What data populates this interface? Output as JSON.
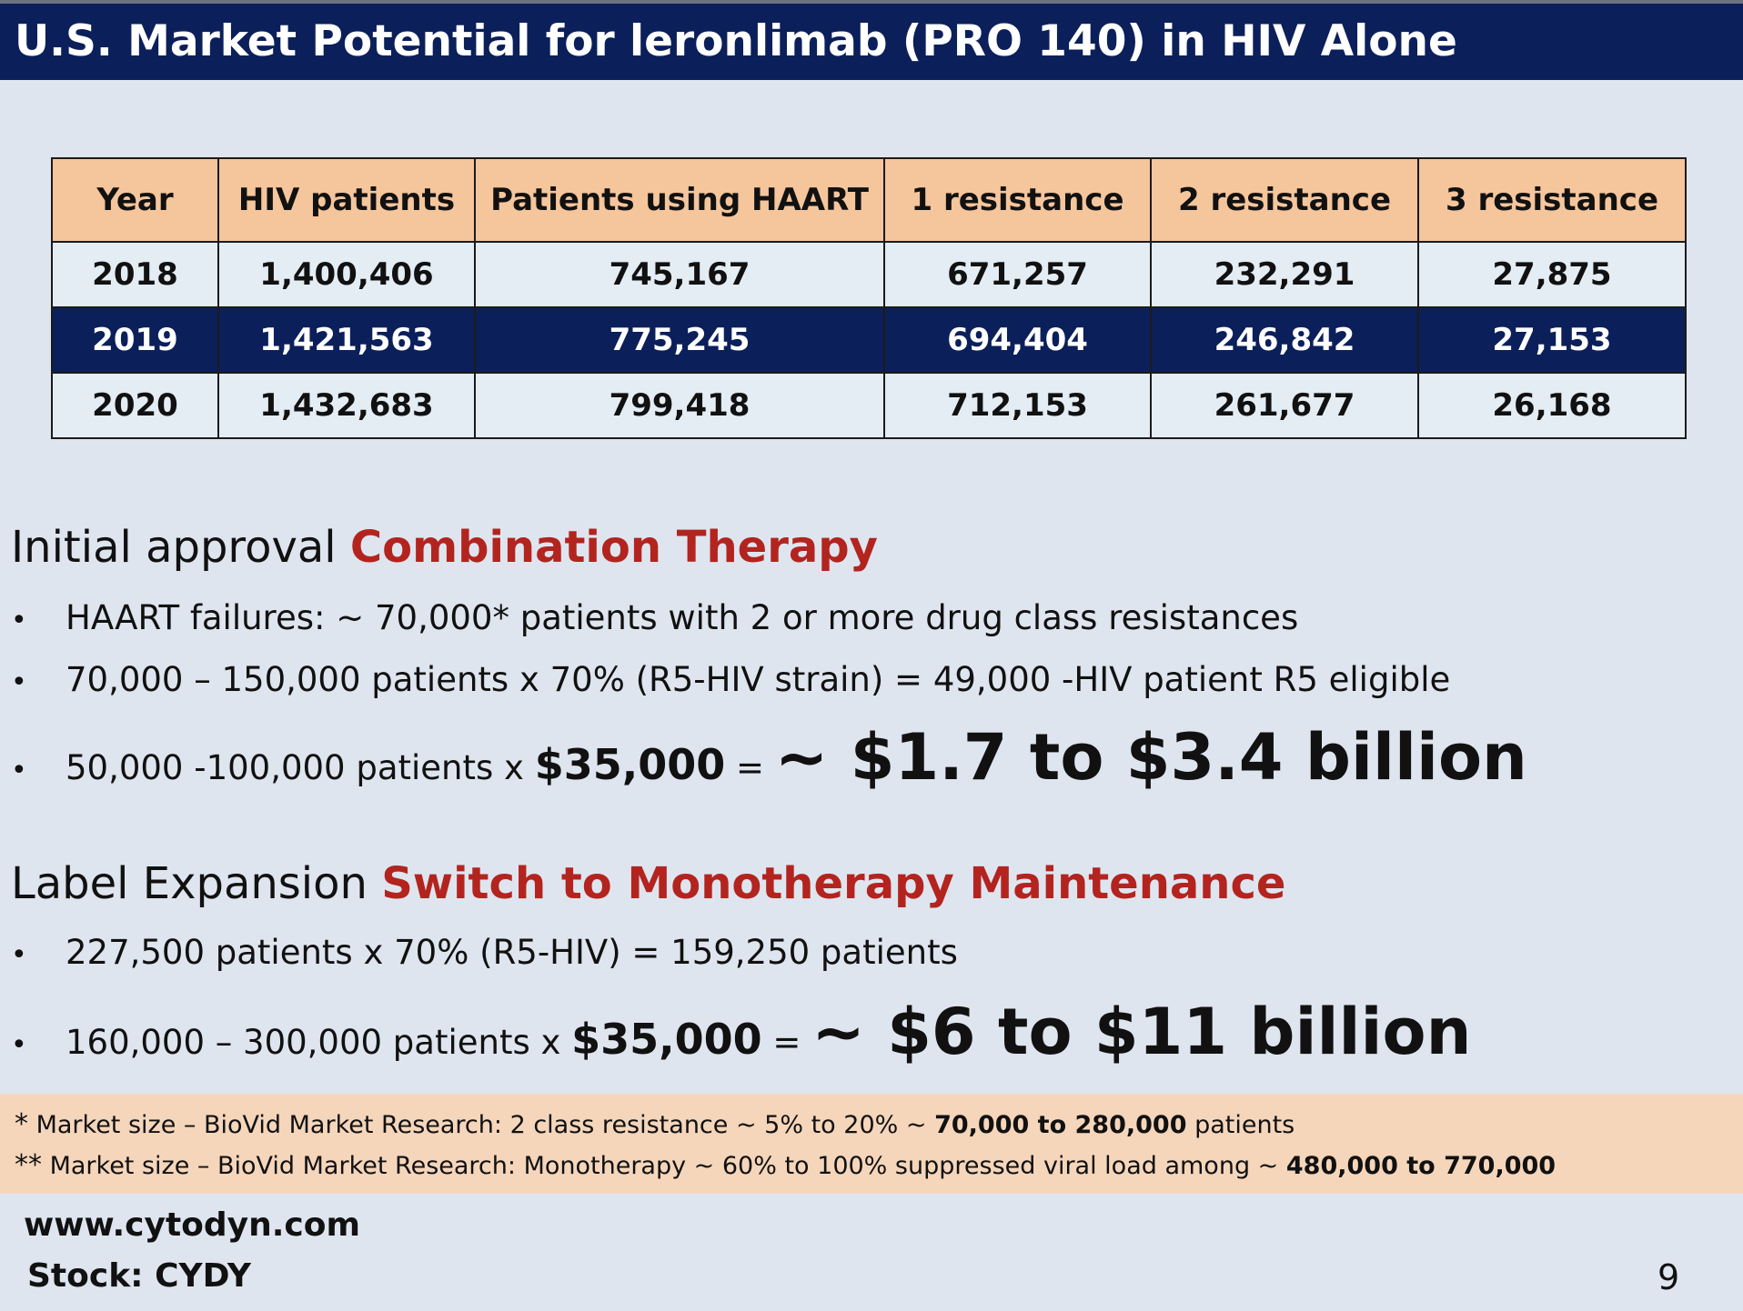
{
  "header": {
    "title": "U.S. Market Potential for leronlimab (PRO 140) in HIV Alone"
  },
  "table": {
    "columns": [
      "Year",
      "HIV patients",
      "Patients using HAART",
      "1 resistance",
      "2 resistance",
      "3 resistance"
    ],
    "rows": [
      [
        "2018",
        "1,400,406",
        "745,167",
        "671,257",
        "232,291",
        "27,875"
      ],
      [
        "2019",
        "1,421,563",
        "775,245",
        "694,404",
        "246,842",
        "27,153"
      ],
      [
        "2020",
        "1,432,683",
        "799,418",
        "712,153",
        "261,677",
        "26,168"
      ]
    ]
  },
  "combination": {
    "lead": "Initial approval ",
    "highlight": "Combination Therapy",
    "bullets": [
      {
        "text": "HAART failures:  ~ 70,000* patients with 2 or more drug class resistances"
      },
      {
        "text": "70,000 – 150,000 patients  x 70% (R5-HIV strain) = 49,000 -HIV patient R5 eligible"
      },
      {
        "pre": "50,000 -100,000 patients  x ",
        "price": "$35,000",
        "eq": " = ",
        "result": "~ $1.7 to $3.4 billion"
      }
    ]
  },
  "expansion": {
    "lead": "Label Expansion ",
    "highlight": "Switch to Monotherapy Maintenance",
    "bullets": [
      {
        "text": "227,500 patients x 70% (R5-HIV) = 159,250 patients"
      },
      {
        "pre": "160,000 – 300,000 patients x ",
        "price": "$35,000",
        "eq": " = ",
        "result": "~ $6 to $11 billion"
      }
    ]
  },
  "bullet_char": "•",
  "footnotes": [
    {
      "marker": "*",
      "label": " Market size – BioVid Market Research:    ",
      "text": "2 class resistance ~ 5% to 20% ~ ",
      "bold": "70,000 to 280,000",
      "tail": " patients"
    },
    {
      "marker": "**",
      "label": " Market size – BioVid Market Research:  ",
      "text": "Monotherapy ~ 60% to 100% suppressed viral load among ~ ",
      "bold": "480,000 to 770,000",
      "tail": ""
    }
  ],
  "footer": {
    "website": "www.cytodyn.com",
    "stock": "Stock: CYDY",
    "page": "9"
  }
}
